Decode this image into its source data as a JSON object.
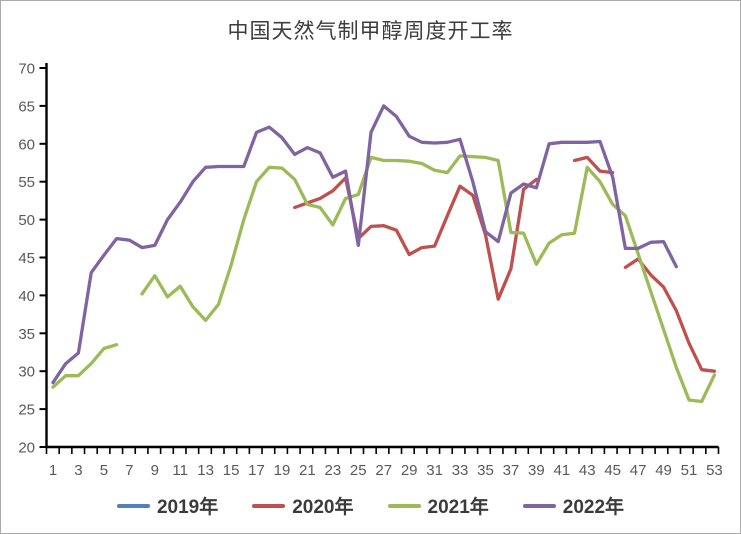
{
  "window": {
    "title": "中国天然气制甲醇周度开工率"
  },
  "axis_colors": {
    "axis_line": "#000000",
    "tick_label": "#595959"
  },
  "chart_data": {
    "type": "line",
    "title": "中国天然气制甲醇周度开工率",
    "xlabel": "",
    "ylabel": "",
    "grid": false,
    "legend_position": "bottom",
    "x_axis": {
      "range": [
        1,
        53
      ],
      "tick_labels": [
        1,
        3,
        5,
        7,
        9,
        11,
        13,
        15,
        17,
        19,
        21,
        23,
        25,
        27,
        29,
        31,
        33,
        35,
        37,
        39,
        41,
        43,
        45,
        47,
        49,
        51,
        53
      ]
    },
    "y_axis": {
      "range": [
        20,
        70
      ],
      "tick_labels": [
        20,
        25,
        30,
        35,
        40,
        45,
        50,
        55,
        60,
        65,
        70
      ]
    },
    "series": [
      {
        "name": "2019年",
        "color": "#4F81BD",
        "segments": []
      },
      {
        "name": "2020年",
        "color": "#C0504D",
        "segments": [
          [
            [
              20,
              51.6
            ],
            [
              21,
              52.2
            ],
            [
              22,
              52.8
            ],
            [
              23,
              53.8
            ],
            [
              24,
              55.5
            ],
            [
              25,
              47.5
            ],
            [
              26,
              49.1
            ],
            [
              27,
              49.2
            ],
            [
              28,
              48.6
            ],
            [
              29,
              45.4
            ],
            [
              30,
              46.3
            ],
            [
              31,
              46.5
            ],
            [
              32,
              50.5
            ],
            [
              33,
              54.4
            ],
            [
              34,
              53.2
            ],
            [
              35,
              48.0
            ],
            [
              36,
              39.5
            ],
            [
              37,
              43.5
            ],
            [
              38,
              54.0
            ],
            [
              39,
              55.3
            ]
          ],
          [
            [
              42,
              57.8
            ],
            [
              43,
              58.2
            ],
            [
              44,
              56.4
            ],
            [
              45,
              56.2
            ]
          ],
          [
            [
              46,
              43.7
            ],
            [
              47,
              44.8
            ],
            [
              48,
              42.7
            ],
            [
              49,
              41.1
            ],
            [
              50,
              38.0
            ],
            [
              51,
              33.7
            ],
            [
              52,
              30.2
            ],
            [
              53,
              30.0
            ]
          ]
        ]
      },
      {
        "name": "2021年",
        "color": "#9BBB59",
        "segments": [
          [
            [
              1,
              27.9
            ],
            [
              2,
              29.4
            ],
            [
              3,
              29.4
            ],
            [
              4,
              31.0
            ],
            [
              5,
              33.0
            ],
            [
              6,
              33.5
            ]
          ],
          [
            [
              8,
              40.2
            ],
            [
              9,
              42.6
            ],
            [
              10,
              39.8
            ],
            [
              11,
              41.2
            ],
            [
              12,
              38.5
            ],
            [
              13,
              36.7
            ],
            [
              14,
              38.8
            ],
            [
              15,
              44.0
            ],
            [
              16,
              50.0
            ],
            [
              17,
              55.0
            ],
            [
              18,
              56.9
            ],
            [
              19,
              56.8
            ],
            [
              20,
              55.3
            ],
            [
              21,
              52.0
            ],
            [
              22,
              51.6
            ],
            [
              23,
              49.3
            ],
            [
              24,
              52.8
            ],
            [
              25,
              53.3
            ],
            [
              26,
              58.2
            ],
            [
              27,
              57.8
            ],
            [
              28,
              57.8
            ],
            [
              29,
              57.7
            ],
            [
              30,
              57.4
            ],
            [
              31,
              56.5
            ],
            [
              32,
              56.2
            ],
            [
              33,
              58.4
            ],
            [
              34,
              58.3
            ],
            [
              35,
              58.2
            ],
            [
              36,
              57.8
            ],
            [
              37,
              48.3
            ],
            [
              38,
              48.2
            ],
            [
              39,
              44.1
            ],
            [
              40,
              46.9
            ],
            [
              41,
              48.0
            ],
            [
              42,
              48.2
            ],
            [
              43,
              56.9
            ],
            [
              44,
              55.0
            ],
            [
              45,
              52.0
            ],
            [
              46,
              50.5
            ],
            [
              47,
              45.5
            ],
            [
              48,
              40.5
            ],
            [
              49,
              35.5
            ],
            [
              50,
              30.5
            ],
            [
              51,
              26.2
            ],
            [
              52,
              26.0
            ],
            [
              53,
              29.5
            ]
          ]
        ]
      },
      {
        "name": "2022年",
        "color": "#8064A2",
        "segments": [
          [
            [
              1,
              28.5
            ],
            [
              2,
              31.0
            ],
            [
              3,
              32.4
            ],
            [
              4,
              43.0
            ],
            [
              5,
              45.3
            ],
            [
              6,
              47.5
            ],
            [
              7,
              47.3
            ],
            [
              8,
              46.3
            ],
            [
              9,
              46.6
            ],
            [
              10,
              50.0
            ],
            [
              11,
              52.3
            ],
            [
              12,
              55.0
            ],
            [
              13,
              56.9
            ],
            [
              14,
              57.0
            ],
            [
              15,
              57.0
            ],
            [
              16,
              57.0
            ],
            [
              17,
              61.5
            ],
            [
              18,
              62.2
            ],
            [
              19,
              60.8
            ],
            [
              20,
              58.6
            ],
            [
              21,
              59.5
            ],
            [
              22,
              58.8
            ],
            [
              23,
              55.6
            ],
            [
              24,
              56.4
            ],
            [
              25,
              46.6
            ],
            [
              26,
              61.5
            ],
            [
              27,
              65.0
            ],
            [
              28,
              63.6
            ],
            [
              29,
              61.0
            ],
            [
              30,
              60.2
            ],
            [
              31,
              60.1
            ],
            [
              32,
              60.2
            ],
            [
              33,
              60.6
            ],
            [
              34,
              55.0
            ],
            [
              35,
              48.4
            ],
            [
              36,
              47.1
            ],
            [
              37,
              53.5
            ],
            [
              38,
              54.7
            ],
            [
              39,
              54.2
            ],
            [
              40,
              60.0
            ],
            [
              41,
              60.2
            ],
            [
              42,
              60.2
            ],
            [
              43,
              60.2
            ],
            [
              44,
              60.3
            ],
            [
              45,
              55.6
            ],
            [
              46,
              46.2
            ],
            [
              47,
              46.2
            ],
            [
              48,
              47.0
            ],
            [
              49,
              47.1
            ],
            [
              50,
              43.8
            ]
          ]
        ]
      }
    ]
  }
}
